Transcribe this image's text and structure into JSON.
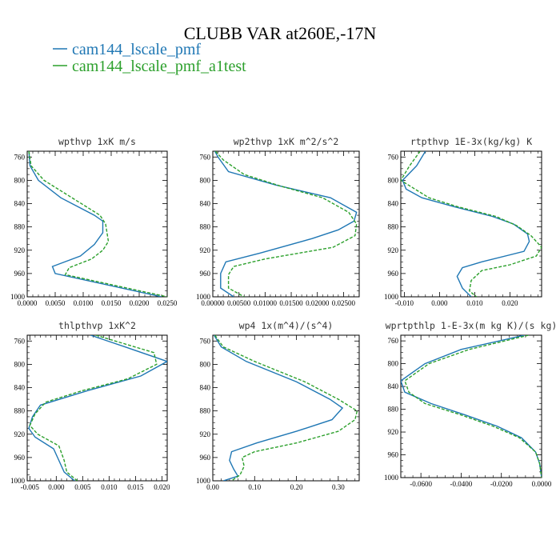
{
  "figure": {
    "title": "CLUBB VAR at260E,-17N",
    "legend": [
      {
        "label": "cam144_lscale_pmf",
        "color": "#1f77b4",
        "dash": "solid"
      },
      {
        "label": "cam144_lscale_pmf_a1test",
        "color": "#2ca02c",
        "dash": "dashed"
      }
    ]
  },
  "chart_data": [
    {
      "type": "line",
      "title": "wpthvp  1xK m/s",
      "xlim": [
        0,
        0.025
      ],
      "ylim": [
        1000,
        750
      ],
      "xticks": [
        0,
        0.005,
        0.01,
        0.015,
        0.02,
        0.025
      ],
      "xtick_labels": [
        "0.0000",
        "0.0050",
        "0.0100",
        "0.0150",
        "0.0200",
        "0.0250"
      ],
      "yticks": [
        760,
        800,
        840,
        880,
        920,
        960,
        1000
      ],
      "ytick_labels": [
        "760",
        "800",
        "840",
        "880",
        "920",
        "960",
        "1000"
      ],
      "series": [
        {
          "name": "cam144_lscale_pmf",
          "x": [
            0.0003,
            0.0005,
            0.002,
            0.006,
            0.012,
            0.0135,
            0.0135,
            0.012,
            0.0095,
            0.0045,
            0.005,
            0.024
          ],
          "y": [
            750,
            775,
            800,
            830,
            860,
            870,
            890,
            910,
            930,
            948,
            960,
            1000
          ]
        },
        {
          "name": "cam144_lscale_pmf_a1test",
          "x": [
            0.0003,
            0.0007,
            0.003,
            0.008,
            0.013,
            0.014,
            0.0145,
            0.0135,
            0.0115,
            0.0075,
            0.0068,
            0.025
          ],
          "y": [
            750,
            775,
            800,
            830,
            860,
            875,
            905,
            920,
            935,
            950,
            962,
            1000
          ]
        }
      ]
    },
    {
      "type": "line",
      "title": "wp2thvp  1xK m^2/s^2",
      "xlim": [
        0,
        0.028
      ],
      "ylim": [
        1000,
        750
      ],
      "xticks": [
        0,
        0.005,
        0.01,
        0.015,
        0.02,
        0.025
      ],
      "xtick_labels": [
        "0.00000",
        "0.00500",
        "0.01000",
        "0.01500",
        "0.02000",
        "0.02500"
      ],
      "yticks": [
        760,
        800,
        840,
        880,
        920,
        960,
        1000
      ],
      "ytick_labels": [
        "760",
        "800",
        "840",
        "880",
        "920",
        "960",
        "1000"
      ],
      "series": [
        {
          "name": "cam144_lscale_pmf",
          "x": [
            0.0004,
            0.001,
            0.003,
            0.012,
            0.0225,
            0.0275,
            0.027,
            0.024,
            0.019,
            0.009,
            0.0025,
            0.0015,
            0.0015,
            0.004
          ],
          "y": [
            750,
            760,
            785,
            808,
            830,
            855,
            870,
            885,
            900,
            925,
            940,
            960,
            985,
            1000
          ]
        },
        {
          "name": "cam144_lscale_pmf_a1test",
          "x": [
            0.0005,
            0.002,
            0.006,
            0.013,
            0.021,
            0.026,
            0.0275,
            0.0272,
            0.023,
            0.01,
            0.004,
            0.003,
            0.003,
            0.006
          ],
          "y": [
            750,
            765,
            790,
            810,
            830,
            855,
            875,
            895,
            915,
            935,
            948,
            962,
            985,
            1000
          ]
        }
      ]
    },
    {
      "type": "line",
      "title": "rtpthvp  1E-3x(kg/kg) K",
      "xlim": [
        -0.011,
        0.029
      ],
      "ylim": [
        1000,
        750
      ],
      "xticks": [
        -0.01,
        0,
        0.01,
        0.02
      ],
      "xtick_labels": [
        "-0.010",
        "0.000",
        "0.010",
        "0.020"
      ],
      "yticks": [
        760,
        800,
        840,
        880,
        920,
        960,
        1000
      ],
      "ytick_labels": [
        "760",
        "800",
        "840",
        "880",
        "920",
        "960",
        "1000"
      ],
      "series": [
        {
          "name": "cam144_lscale_pmf",
          "x": [
            -0.004,
            -0.0065,
            -0.0105,
            -0.0095,
            -0.005,
            0.004,
            0.015,
            0.021,
            0.025,
            0.0255,
            0.024,
            0.012,
            0.0065,
            0.005,
            0.0065,
            0.009
          ],
          "y": [
            750,
            775,
            800,
            815,
            830,
            845,
            862,
            875,
            892,
            905,
            922,
            940,
            950,
            965,
            985,
            1000
          ]
        },
        {
          "name": "cam144_lscale_pmf_a1test",
          "x": [
            -0.0055,
            -0.0085,
            -0.011,
            -0.007,
            -0.003,
            0.005,
            0.016,
            0.022,
            0.026,
            0.029,
            0.0275,
            0.02,
            0.012,
            0.009,
            0.0085,
            0.0105
          ],
          "y": [
            750,
            775,
            800,
            815,
            830,
            845,
            862,
            878,
            895,
            915,
            930,
            945,
            955,
            972,
            990,
            1000
          ]
        }
      ]
    },
    {
      "type": "line",
      "title": "thlpthvp  1xK^2",
      "xlim": [
        -0.0055,
        0.021
      ],
      "ylim": [
        1000,
        750
      ],
      "xticks": [
        -0.005,
        0,
        0.005,
        0.01,
        0.015,
        0.02
      ],
      "xtick_labels": [
        "-0.005",
        "0.000",
        "0.005",
        "0.010",
        "0.015",
        "0.020"
      ],
      "yticks": [
        760,
        800,
        840,
        880,
        920,
        960,
        1000
      ],
      "ytick_labels": [
        "760",
        "800",
        "840",
        "880",
        "920",
        "960",
        "1000"
      ],
      "series": [
        {
          "name": "cam144_lscale_pmf",
          "x": [
            0.0065,
            0.013,
            0.021,
            0.016,
            0.006,
            -0.003,
            -0.0045,
            -0.0052,
            -0.004,
            -0.0005,
            0.0005,
            0.0015,
            0.0035
          ],
          "y": [
            750,
            770,
            795,
            820,
            845,
            870,
            890,
            910,
            925,
            945,
            965,
            985,
            1000
          ]
        },
        {
          "name": "cam144_lscale_pmf_a1test",
          "x": [
            0.0075,
            0.0185,
            0.019,
            0.0135,
            0.005,
            -0.002,
            -0.004,
            -0.005,
            -0.0035,
            0.0005,
            0.0015,
            0.002,
            0.004
          ],
          "y": [
            750,
            780,
            800,
            825,
            845,
            865,
            885,
            905,
            920,
            940,
            965,
            985,
            1000
          ]
        }
      ]
    },
    {
      "type": "line",
      "title": "wp4  1x(m^4)/(s^4)",
      "xlim": [
        0,
        0.35
      ],
      "ylim": [
        1000,
        750
      ],
      "xticks": [
        0,
        0.1,
        0.2,
        0.3
      ],
      "xtick_labels": [
        "0.00",
        "0.10",
        "0.20",
        "0.30"
      ],
      "yticks": [
        760,
        800,
        840,
        880,
        920,
        960,
        1000
      ],
      "ytick_labels": [
        "760",
        "800",
        "840",
        "880",
        "920",
        "960",
        "1000"
      ],
      "series": [
        {
          "name": "cam144_lscale_pmf",
          "x": [
            0.003,
            0.02,
            0.08,
            0.2,
            0.28,
            0.31,
            0.285,
            0.2,
            0.105,
            0.045,
            0.04,
            0.05,
            0.06,
            0.025
          ],
          "y": [
            750,
            770,
            795,
            830,
            860,
            875,
            895,
            915,
            935,
            950,
            965,
            980,
            992,
            1000
          ]
        },
        {
          "name": "cam144_lscale_pmf_a1test",
          "x": [
            0.005,
            0.025,
            0.1,
            0.22,
            0.3,
            0.345,
            0.34,
            0.3,
            0.2,
            0.1,
            0.07,
            0.075,
            0.065,
            0.045
          ],
          "y": [
            750,
            770,
            795,
            830,
            860,
            880,
            895,
            915,
            935,
            950,
            960,
            975,
            990,
            1000
          ]
        }
      ]
    },
    {
      "type": "line",
      "title": "wprtpthlp  1-E-3x(m kg K)/(s kg)",
      "xlim": [
        -0.07,
        0
      ],
      "ylim": [
        1000,
        750
      ],
      "xticks": [
        -0.06,
        -0.04,
        -0.02,
        0
      ],
      "xtick_labels": [
        "-0.0600",
        "-0.0400",
        "-0.0200",
        "0.0000"
      ],
      "yticks": [
        760,
        800,
        840,
        880,
        920,
        960,
        1000
      ],
      "ytick_labels": [
        "760",
        "800",
        "840",
        "880",
        "920",
        "960",
        "1000"
      ],
      "series": [
        {
          "name": "cam144_lscale_pmf",
          "x": [
            -0.0085,
            -0.04,
            -0.058,
            -0.07,
            -0.068,
            -0.055,
            -0.038,
            -0.022,
            -0.01,
            -0.003,
            -0.001,
            0
          ],
          "y": [
            750,
            775,
            800,
            830,
            850,
            870,
            890,
            910,
            930,
            955,
            975,
            1000
          ]
        },
        {
          "name": "cam144_lscale_pmf_a1test",
          "x": [
            -0.0065,
            -0.036,
            -0.056,
            -0.068,
            -0.066,
            -0.058,
            -0.04,
            -0.024,
            -0.011,
            -0.003,
            -0.001,
            0
          ],
          "y": [
            750,
            775,
            800,
            830,
            850,
            870,
            890,
            910,
            930,
            955,
            975,
            1000
          ]
        }
      ]
    }
  ]
}
